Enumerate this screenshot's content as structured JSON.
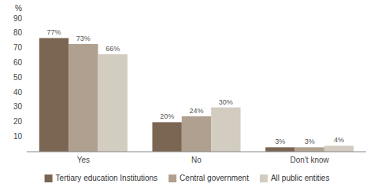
{
  "chart_data": {
    "type": "bar",
    "ylabel": "%",
    "categories": [
      "Yes",
      "No",
      "Don't know"
    ],
    "series": [
      {
        "name": "Tertiary education Institutions",
        "color": "#7a6652",
        "values": [
          77,
          20,
          3
        ],
        "value_labels": [
          "77%",
          "20%",
          "3%"
        ]
      },
      {
        "name": "Central government",
        "color": "#b0a090",
        "values": [
          73,
          24,
          3
        ],
        "value_labels": [
          "73%",
          "24%",
          "3%"
        ]
      },
      {
        "name": "All public entities",
        "color": "#d3ccc0",
        "values": [
          66,
          30,
          4
        ],
        "value_labels": [
          "66%",
          "30%",
          "4%"
        ]
      }
    ],
    "ylim": [
      0,
      90
    ],
    "yticks": [
      10,
      20,
      30,
      40,
      50,
      60,
      70,
      80,
      90
    ],
    "grid": false,
    "legend": "bottom",
    "data_labels": true
  }
}
